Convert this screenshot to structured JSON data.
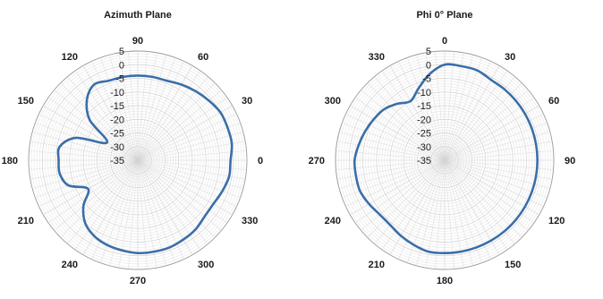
{
  "chart_data": [
    {
      "type": "polar-line",
      "title": "Azimuth Plane",
      "angle_labels": [
        "0",
        "30",
        "60",
        "90",
        "120",
        "150",
        "180",
        "210",
        "240",
        "270",
        "300",
        "330"
      ],
      "angle_positions_deg": [
        0,
        30,
        60,
        90,
        120,
        150,
        180,
        210,
        240,
        270,
        300,
        330
      ],
      "angle_label_direction": "counterclockwise",
      "zero_at": "right",
      "radial_ticks": [
        "5",
        "0",
        "-5",
        "-10",
        "-15",
        "-20",
        "-25",
        "-30",
        "-35"
      ],
      "radial_range": [
        -35,
        5
      ],
      "grid": true,
      "series": [
        {
          "color": "#3a6ea8",
          "theta": [
            0,
            10,
            20,
            30,
            40,
            50,
            60,
            70,
            80,
            90,
            100,
            110,
            120,
            130,
            140,
            150,
            160,
            170,
            180,
            190,
            200,
            210,
            220,
            230,
            240,
            250,
            260,
            270,
            280,
            290,
            300,
            310,
            320,
            330,
            340,
            350
          ],
          "r": [
            -1,
            0,
            0,
            0,
            -1,
            -2,
            -3,
            -4,
            -4,
            -4,
            -4,
            -4,
            -3,
            -6,
            -12,
            -22,
            -11,
            -6,
            -6,
            -6,
            -8,
            -14,
            -9,
            -5,
            -3,
            -2,
            -1.5,
            -1,
            -1,
            -1,
            -1.5,
            -2,
            -3,
            -3,
            -2,
            -1
          ]
        }
      ]
    },
    {
      "type": "polar-line",
      "title": "Phi 0° Plane",
      "angle_labels": [
        "0",
        "30",
        "60",
        "90",
        "120",
        "150",
        "180",
        "210",
        "240",
        "270",
        "300",
        "330"
      ],
      "angle_positions_deg": [
        90,
        60,
        30,
        0,
        330,
        300,
        270,
        240,
        210,
        180,
        150,
        120
      ],
      "angle_label_direction": "clockwise",
      "zero_at": "top",
      "radial_ticks": [
        "5",
        "0",
        "-5",
        "-10",
        "-15",
        "-20",
        "-25",
        "-30",
        "-35"
      ],
      "radial_range": [
        -35,
        5
      ],
      "grid": true,
      "series": [
        {
          "color": "#3a6ea8",
          "theta": [
            0,
            10,
            20,
            30,
            40,
            50,
            60,
            70,
            80,
            90,
            100,
            110,
            120,
            130,
            140,
            150,
            160,
            170,
            180,
            190,
            200,
            210,
            220,
            230,
            240,
            250,
            260,
            270,
            280,
            290,
            300,
            310,
            320,
            330,
            340,
            350
          ],
          "r": [
            0,
            0,
            0,
            -1,
            -1,
            -1,
            -1,
            -1,
            -1,
            -1,
            -1,
            -1,
            -1,
            -1,
            -1,
            -1,
            -1,
            -1,
            -1,
            -1,
            -2,
            -3,
            -4,
            -4,
            -3,
            -2,
            -2,
            -2,
            -3,
            -4,
            -5,
            -6,
            -8,
            -10,
            -7,
            -3
          ]
        }
      ]
    }
  ]
}
